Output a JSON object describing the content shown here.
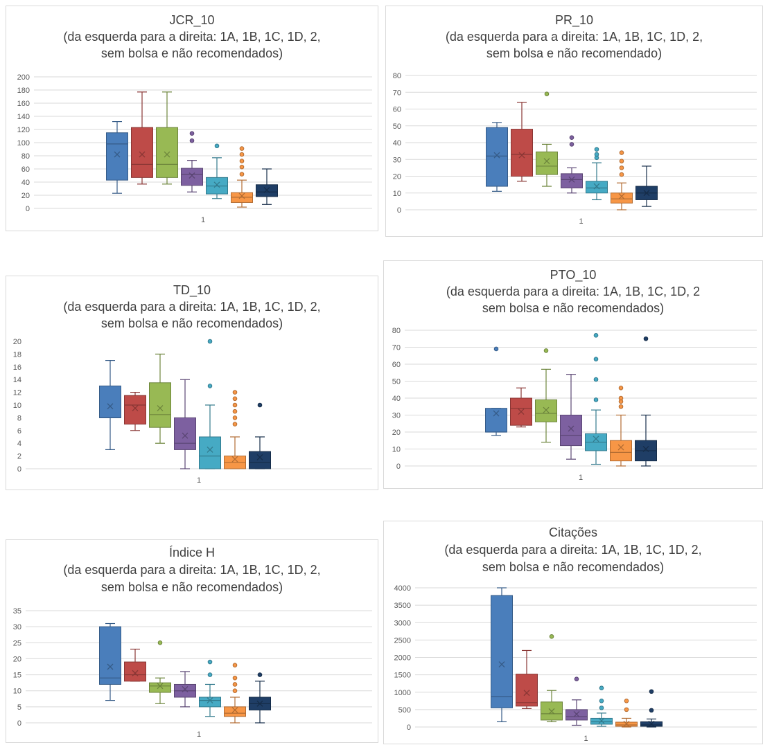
{
  "colors": {
    "series": [
      "#4a7ebb",
      "#be4b48",
      "#98b954",
      "#7d60a0",
      "#46aac4",
      "#f79646",
      "#1f3e66"
    ],
    "axis_text": "#595959",
    "grid": "#d9d9d9",
    "title": "#404040"
  },
  "chart_data": [
    {
      "type": "box",
      "title": "JCR_10",
      "subtitle": [
        "(da esquerda para a direita: 1A, 1B, 1C, 1D, 2,",
        "sem bolsa e não recomendados)"
      ],
      "xlabel": "1",
      "ylim": [
        0,
        200
      ],
      "yticks": [
        0,
        20,
        40,
        60,
        80,
        100,
        120,
        140,
        160,
        180,
        200
      ],
      "legend": "none",
      "grid": true,
      "boxes": [
        {
          "min": 23,
          "q1": 43,
          "median": 98,
          "q3": 115,
          "max": 132,
          "mean": 82,
          "outliers": []
        },
        {
          "min": 37,
          "q1": 47,
          "median": 67,
          "q3": 123,
          "max": 177,
          "mean": 82,
          "outliers": []
        },
        {
          "min": 37,
          "q1": 47,
          "median": 67,
          "q3": 123,
          "max": 177,
          "mean": 82,
          "outliers": []
        },
        {
          "min": 25,
          "q1": 35,
          "median": 52,
          "q3": 61,
          "max": 73,
          "mean": 50,
          "outliers": [
            103,
            114
          ]
        },
        {
          "min": 15,
          "q1": 22,
          "median": 34,
          "q3": 47,
          "max": 77,
          "mean": 36,
          "outliers": [
            95
          ]
        },
        {
          "min": 2,
          "q1": 9,
          "median": 17,
          "q3": 24,
          "max": 43,
          "mean": 19,
          "outliers": [
            52,
            63,
            72,
            82,
            91
          ]
        },
        {
          "min": 6,
          "q1": 18,
          "median": 25,
          "q3": 36,
          "max": 60,
          "mean": 28,
          "outliers": []
        }
      ]
    },
    {
      "type": "box",
      "title": "PR_10",
      "subtitle": [
        "(da esquerda para a direita: 1A, 1B, 1C, 1D, 2,",
        "sem bolsa e não recomendado)"
      ],
      "xlabel": "1",
      "ylim": [
        0,
        80
      ],
      "yticks": [
        0,
        10,
        20,
        30,
        40,
        50,
        60,
        70,
        80
      ],
      "legend": "none",
      "grid": true,
      "boxes": [
        {
          "min": 11,
          "q1": 14,
          "median": 32,
          "q3": 49,
          "max": 52,
          "mean": 32.5,
          "outliers": []
        },
        {
          "min": 17,
          "q1": 20,
          "median": 33,
          "q3": 48,
          "max": 64,
          "mean": 32.5,
          "outliers": []
        },
        {
          "min": 14,
          "q1": 21,
          "median": 26,
          "q3": 34.5,
          "max": 39,
          "mean": 29,
          "outliers": [
            69
          ]
        },
        {
          "min": 10,
          "q1": 13,
          "median": 18,
          "q3": 21.5,
          "max": 25,
          "mean": 18,
          "outliers": [
            39,
            43
          ]
        },
        {
          "min": 6,
          "q1": 10,
          "median": 13,
          "q3": 17,
          "max": 28,
          "mean": 14,
          "outliers": [
            31,
            33,
            36
          ]
        },
        {
          "min": 0,
          "q1": 4,
          "median": 6.5,
          "q3": 10,
          "max": 16,
          "mean": 8,
          "outliers": [
            21,
            25,
            29,
            34
          ]
        },
        {
          "min": 2,
          "q1": 6,
          "median": 10,
          "q3": 14,
          "max": 26,
          "mean": 10,
          "outliers": []
        }
      ]
    },
    {
      "type": "box",
      "title": "TD_10",
      "subtitle": [
        "(da esquerda para a direita: 1A, 1B, 1C, 1D, 2,",
        "sem bolsa e não recomendados)"
      ],
      "xlabel": "1",
      "ylim": [
        0,
        20
      ],
      "yticks": [
        0,
        2,
        4,
        6,
        8,
        10,
        12,
        14,
        16,
        18,
        20
      ],
      "legend": "none",
      "grid": false,
      "boxes": [
        {
          "min": 3,
          "q1": 8,
          "median": 8,
          "q3": 13,
          "max": 17,
          "mean": 9.8,
          "outliers": []
        },
        {
          "min": 6,
          "q1": 7,
          "median": 10,
          "q3": 11.5,
          "max": 12,
          "mean": 9.5,
          "outliers": []
        },
        {
          "min": 4,
          "q1": 6.5,
          "median": 8.5,
          "q3": 13.5,
          "max": 18,
          "mean": 9.5,
          "outliers": []
        },
        {
          "min": 0,
          "q1": 3,
          "median": 4,
          "q3": 8,
          "max": 14,
          "mean": 5.2,
          "outliers": []
        },
        {
          "min": 0,
          "q1": 0,
          "median": 2,
          "q3": 5,
          "max": 10,
          "mean": 3,
          "outliers": [
            13,
            20
          ]
        },
        {
          "min": 0,
          "q1": 0,
          "median": 1,
          "q3": 2,
          "max": 5,
          "mean": 1.5,
          "outliers": [
            7,
            8,
            9,
            10,
            11,
            12
          ]
        },
        {
          "min": 0,
          "q1": 0,
          "median": 1,
          "q3": 2.7,
          "max": 5,
          "mean": 1.8,
          "outliers": [
            10
          ]
        }
      ]
    },
    {
      "type": "box",
      "title": "PTO_10",
      "subtitle": [
        "(da esquerda para a direita: 1A, 1B, 1C, 1D, 2",
        "sem bolsa e não recomendados)"
      ],
      "xlabel": "1",
      "ylim": [
        0,
        80
      ],
      "yticks": [
        0,
        10,
        20,
        30,
        40,
        50,
        60,
        70,
        80
      ],
      "legend": "none",
      "grid": true,
      "boxes": [
        {
          "min": 18,
          "q1": 20,
          "median": 20,
          "q3": 34,
          "max": 34,
          "mean": 31,
          "outliers": [
            69
          ]
        },
        {
          "min": 23,
          "q1": 24,
          "median": 34,
          "q3": 40,
          "max": 46,
          "mean": 32,
          "outliers": []
        },
        {
          "min": 14,
          "q1": 26,
          "median": 31,
          "q3": 39,
          "max": 57,
          "mean": 33,
          "outliers": [
            68
          ]
        },
        {
          "min": 4,
          "q1": 12,
          "median": 18,
          "q3": 30,
          "max": 54,
          "mean": 22,
          "outliers": []
        },
        {
          "min": 1,
          "q1": 9,
          "median": 14,
          "q3": 19,
          "max": 33,
          "mean": 16,
          "outliers": [
            39,
            51,
            63,
            77
          ]
        },
        {
          "min": 0,
          "q1": 3,
          "median": 8,
          "q3": 15,
          "max": 30,
          "mean": 11,
          "outliers": [
            35,
            38,
            40,
            46
          ]
        },
        {
          "min": 0,
          "q1": 3,
          "median": 9,
          "q3": 15,
          "max": 30,
          "mean": 10,
          "outliers": [
            75
          ]
        }
      ]
    },
    {
      "type": "box",
      "title": "Índice H",
      "subtitle": [
        "(da esquerda para a direita: 1A, 1B, 1C, 1D, 2,",
        "sem bolsa e não recomendados)"
      ],
      "xlabel": "1",
      "ylim": [
        0,
        35
      ],
      "yticks": [
        0,
        5,
        10,
        15,
        20,
        25,
        30,
        35
      ],
      "legend": "none",
      "grid": true,
      "boxes": [
        {
          "min": 7,
          "q1": 12,
          "median": 14,
          "q3": 30,
          "max": 31,
          "mean": 17.5,
          "outliers": []
        },
        {
          "min": 13,
          "q1": 13,
          "median": 15,
          "q3": 19,
          "max": 23,
          "mean": 15.5,
          "outliers": []
        },
        {
          "min": 6,
          "q1": 9.5,
          "median": 11.5,
          "q3": 12.5,
          "max": 14,
          "mean": 11.5,
          "outliers": [
            25
          ]
        },
        {
          "min": 5,
          "q1": 8,
          "median": 10,
          "q3": 12,
          "max": 16,
          "mean": 10.5,
          "outliers": []
        },
        {
          "min": 2,
          "q1": 5,
          "median": 7,
          "q3": 8,
          "max": 12,
          "mean": 7,
          "outliers": [
            15,
            19
          ]
        },
        {
          "min": 0,
          "q1": 2,
          "median": 3,
          "q3": 5,
          "max": 8,
          "mean": 4,
          "outliers": [
            10,
            12,
            14,
            18
          ]
        },
        {
          "min": 0,
          "q1": 4,
          "median": 6,
          "q3": 8,
          "max": 13,
          "mean": 6,
          "outliers": [
            15
          ]
        }
      ]
    },
    {
      "type": "box",
      "title": "Citações",
      "subtitle": [
        "(da esquerda para a direita: 1A, 1B, 1C, 1D, 2,",
        "sem bolsa e não recomendados)"
      ],
      "xlabel": "1",
      "ylim": [
        0,
        4000
      ],
      "yticks": [
        0,
        500,
        1000,
        1500,
        2000,
        2500,
        3000,
        3500,
        4000
      ],
      "legend": "none",
      "grid": true,
      "boxes": [
        {
          "min": 150,
          "q1": 550,
          "median": 870,
          "q3": 3780,
          "max": 4000,
          "mean": 1800,
          "outliers": []
        },
        {
          "min": 530,
          "q1": 600,
          "median": 700,
          "q3": 1520,
          "max": 2200,
          "mean": 980,
          "outliers": []
        },
        {
          "min": 150,
          "q1": 200,
          "median": 380,
          "q3": 720,
          "max": 1050,
          "mean": 450,
          "outliers": [
            2600
          ]
        },
        {
          "min": 50,
          "q1": 200,
          "median": 300,
          "q3": 500,
          "max": 780,
          "mean": 370,
          "outliers": [
            1380
          ]
        },
        {
          "min": 20,
          "q1": 80,
          "median": 150,
          "q3": 250,
          "max": 400,
          "mean": 180,
          "outliers": [
            550,
            750,
            1120
          ]
        },
        {
          "min": 0,
          "q1": 20,
          "median": 60,
          "q3": 140,
          "max": 250,
          "mean": 90,
          "outliers": [
            500,
            750
          ]
        },
        {
          "min": 0,
          "q1": 20,
          "median": 60,
          "q3": 150,
          "max": 230,
          "mean": 90,
          "outliers": [
            480,
            1020
          ]
        }
      ]
    }
  ]
}
